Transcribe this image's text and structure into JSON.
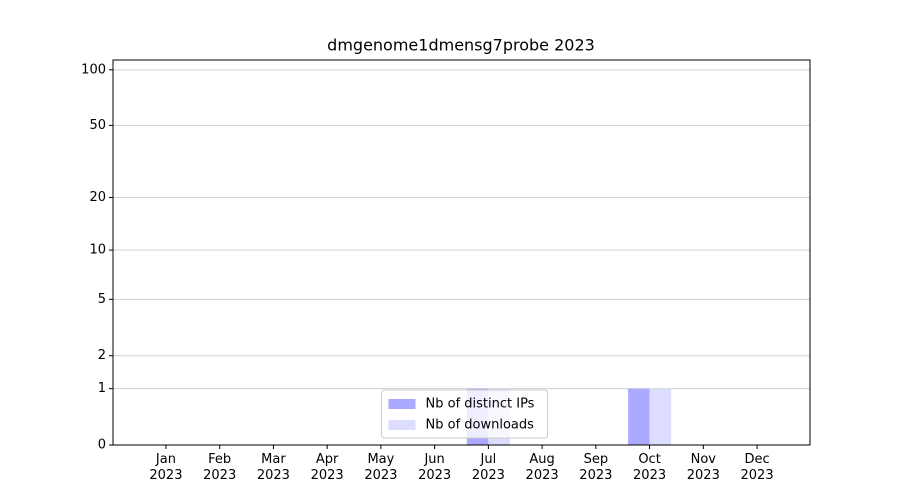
{
  "chart_data": {
    "type": "bar",
    "title": "dmgenome1dmensg7probe 2023",
    "categories": [
      "Jan\n2023",
      "Feb\n2023",
      "Mar\n2023",
      "Apr\n2023",
      "May\n2023",
      "Jun\n2023",
      "Jul\n2023",
      "Aug\n2023",
      "Sep\n2023",
      "Oct\n2023",
      "Nov\n2023",
      "Dec\n2023"
    ],
    "series": [
      {
        "name": "Nb of distinct IPs",
        "color": "#aaaaff",
        "values": [
          0,
          0,
          0,
          0,
          0,
          0,
          1,
          0,
          0,
          1,
          0,
          0
        ]
      },
      {
        "name": "Nb of downloads",
        "color": "#ddddff",
        "values": [
          0,
          0,
          0,
          0,
          0,
          0,
          1,
          0,
          0,
          1,
          0,
          0
        ]
      }
    ],
    "yscale": "log1p",
    "ylim": [
      0,
      113
    ],
    "yticks": [
      0,
      1,
      2,
      5,
      10,
      20,
      50,
      100
    ],
    "grid": true,
    "legend": "lower center"
  }
}
